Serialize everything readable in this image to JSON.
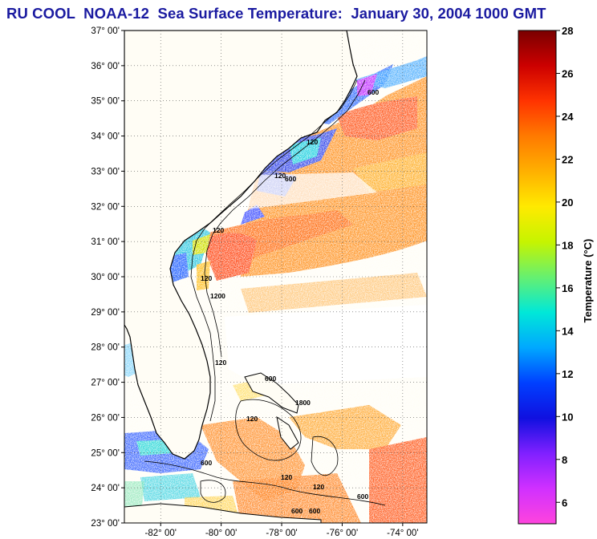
{
  "title": "RU COOL  NOAA-12  Sea Surface Temperature:  January 30, 2004 1000 GMT",
  "map": {
    "lat_labels": [
      "37° 00'",
      "36° 00'",
      "35° 00'",
      "34° 00'",
      "33° 00'",
      "32° 00'",
      "31° 00'",
      "30° 00'",
      "29° 00'",
      "28° 00'",
      "27° 00'",
      "26° 00'",
      "25° 00'",
      "24° 00'",
      "23° 00'"
    ],
    "lat_values": [
      37,
      36,
      35,
      34,
      33,
      32,
      31,
      30,
      29,
      28,
      27,
      26,
      25,
      24,
      23
    ],
    "lon_labels": [
      "-82° 00'",
      "-80° 00'",
      "-78° 00'",
      "-76° 00'",
      "-74° 00'"
    ],
    "lon_values": [
      -82,
      -80,
      -78,
      -76,
      -74
    ],
    "lat_range": [
      23,
      37
    ],
    "lon_range": [
      -83.2,
      -73.2
    ],
    "grid": "dotted",
    "contour_labels": [
      "600",
      "120",
      "120",
      "600",
      "120",
      "120",
      "1200",
      "120",
      "600",
      "1800",
      "120",
      "600",
      "120",
      "600",
      "120",
      "600",
      "600"
    ],
    "colors": {
      "land": "#fffdf5",
      "coast": "#000000",
      "cloud": "#ffffff"
    }
  },
  "colorbar": {
    "label": "Temperature (°C)",
    "ticks": [
      "28",
      "26",
      "24",
      "22",
      "20",
      "18",
      "16",
      "14",
      "12",
      "10",
      "8",
      "6"
    ],
    "tick_values": [
      28,
      26,
      24,
      22,
      20,
      18,
      16,
      14,
      12,
      10,
      8,
      6
    ],
    "range": [
      5,
      28
    ],
    "gradient": [
      "#7a0000",
      "#cc0000",
      "#ff3300",
      "#ff7a00",
      "#ffb000",
      "#ffea00",
      "#c6f400",
      "#66f070",
      "#00e8d8",
      "#00a8ff",
      "#0040ff",
      "#1010e0",
      "#8020ff",
      "#d030ff",
      "#ff44dd"
    ]
  }
}
